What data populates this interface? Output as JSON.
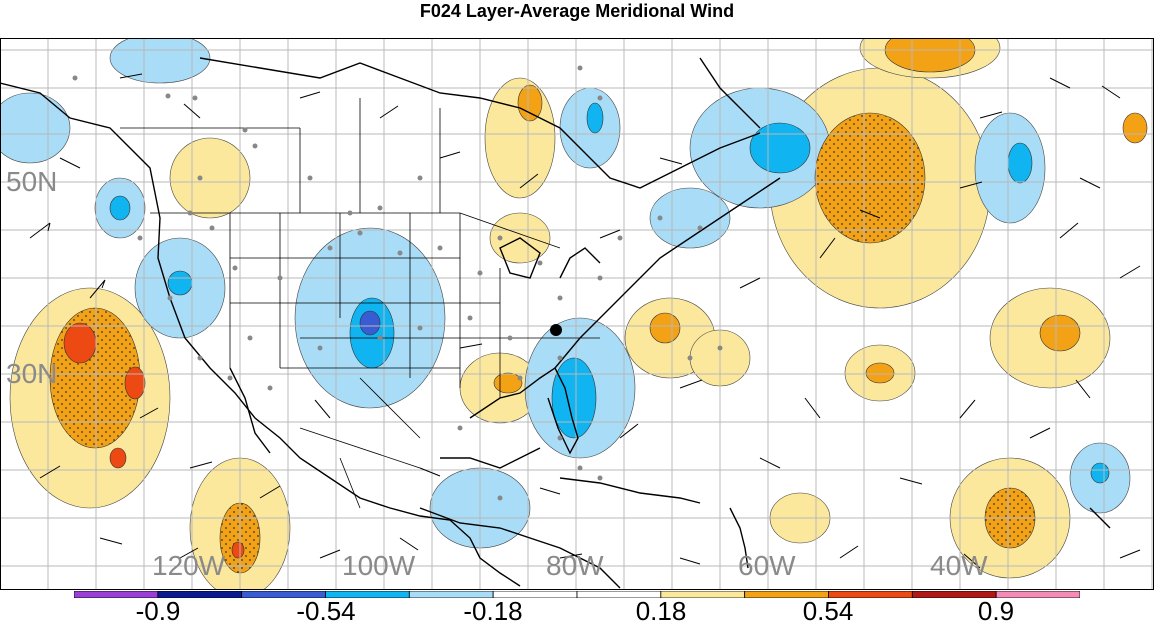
{
  "title": "F024 Layer-Average Meridional Wind",
  "map": {
    "lat_labels": [
      "50N",
      "30N"
    ],
    "lon_labels": [
      "120W",
      "100W",
      "80W",
      "60W",
      "40W"
    ]
  },
  "legend": {
    "colors": [
      "#9b3fd6",
      "#0b1b8f",
      "#3a5cd2",
      "#10b4f0",
      "#a9dcf6",
      "#ffffff",
      "#ffffff",
      "#fce89c",
      "#f3a215",
      "#ec4a12",
      "#b01818",
      "#f48cb6"
    ],
    "tick_labels": [
      "-0.9",
      "-0.54",
      "-0.18",
      "0.18",
      "0.54",
      "0.9"
    ]
  },
  "colors": {
    "land_outline": "#000000",
    "grid": "#b8b8b8",
    "station_dot": "#888888"
  }
}
